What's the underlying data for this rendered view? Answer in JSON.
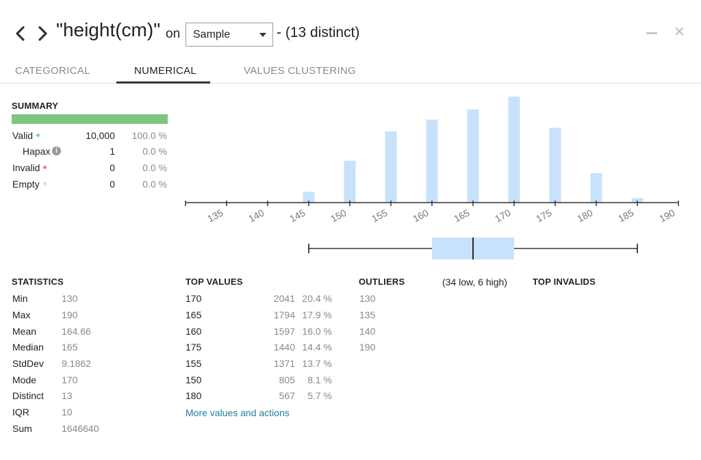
{
  "header": {
    "title": "\"height(cm)\"",
    "on_label": "on",
    "sample_select": "Sample",
    "distinct": "- (13 distinct)"
  },
  "tabs": [
    {
      "label": "CATEGORICAL",
      "active": false
    },
    {
      "label": "NUMERICAL",
      "active": true
    },
    {
      "label": "VALUES CLUSTERING",
      "active": false
    }
  ],
  "summary": {
    "title": "SUMMARY",
    "rows": [
      {
        "label": "Valid",
        "count": "10,000",
        "pct": "100.0 %",
        "dot_color": "#7fd3a2"
      },
      {
        "label": "Hapax",
        "count": "1",
        "pct": "0.0 %"
      },
      {
        "label": "Invalid",
        "count": "0",
        "pct": "0.0 %",
        "dot_color": "#f07a8e"
      },
      {
        "label": "Empty",
        "count": "0",
        "pct": "0.0 %",
        "dot_color": "#dddddd"
      }
    ]
  },
  "chart_data": {
    "type": "bar",
    "x": [
      135,
      140,
      145,
      150,
      155,
      160,
      165,
      170,
      175,
      180,
      185,
      190
    ],
    "x_ticks": [
      "135",
      "140",
      "145",
      "150",
      "155",
      "160",
      "165",
      "170",
      "175",
      "180",
      "185",
      "190"
    ],
    "xlim": [
      130,
      190
    ],
    "bars": [
      {
        "x": 140,
        "count": 6
      },
      {
        "x": 145,
        "count": 206
      },
      {
        "x": 150,
        "count": 805
      },
      {
        "x": 155,
        "count": 1371
      },
      {
        "x": 160,
        "count": 1597
      },
      {
        "x": 165,
        "count": 1794
      },
      {
        "x": 170,
        "count": 2041
      },
      {
        "x": 175,
        "count": 1440
      },
      {
        "x": 180,
        "count": 567
      },
      {
        "x": 185,
        "count": 87
      }
    ],
    "ylim": [
      0,
      2041
    ],
    "bar_color": "#c9e2fb",
    "boxplot": {
      "whisker_low": 145,
      "q1": 160,
      "median": 165,
      "q3": 170,
      "whisker_high": 185,
      "fill": "#c9e2fb"
    }
  },
  "statistics": {
    "title": "STATISTICS",
    "rows": [
      {
        "label": "Min",
        "value": "130"
      },
      {
        "label": "Max",
        "value": "190"
      },
      {
        "label": "Mean",
        "value": "164.66"
      },
      {
        "label": "Median",
        "value": "165"
      },
      {
        "label": "StdDev",
        "value": "9.1862"
      },
      {
        "label": "Mode",
        "value": "170"
      },
      {
        "label": "Distinct",
        "value": "13"
      },
      {
        "label": "IQR",
        "value": "10"
      },
      {
        "label": "Sum",
        "value": "1646640"
      }
    ]
  },
  "top_values": {
    "title": "TOP VALUES",
    "rows": [
      {
        "value": "170",
        "count": "2041",
        "pct": "20.4 %"
      },
      {
        "value": "165",
        "count": "1794",
        "pct": "17.9 %"
      },
      {
        "value": "160",
        "count": "1597",
        "pct": "16.0 %"
      },
      {
        "value": "175",
        "count": "1440",
        "pct": "14.4 %"
      },
      {
        "value": "155",
        "count": "1371",
        "pct": "13.7 %"
      },
      {
        "value": "150",
        "count": "805",
        "pct": "8.1 %"
      },
      {
        "value": "180",
        "count": "567",
        "pct": "5.7 %"
      }
    ],
    "more_link": "More values and actions"
  },
  "outliers": {
    "title": "OUTLIERS",
    "summary": "(34 low, 6 high)",
    "values": [
      "130",
      "135",
      "140",
      "190"
    ]
  },
  "top_invalids": {
    "title": "TOP INVALIDS"
  }
}
